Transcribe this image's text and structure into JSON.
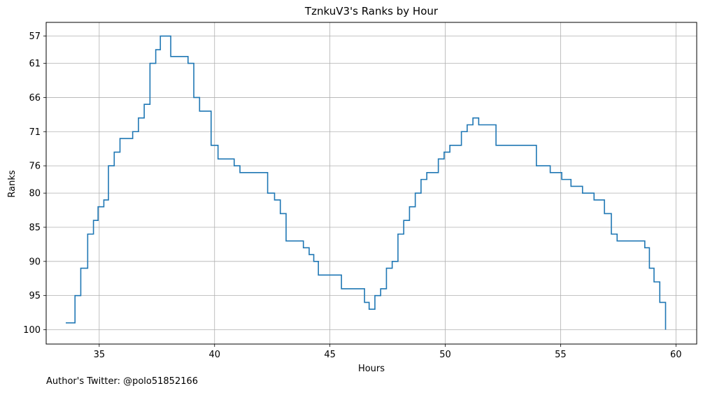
{
  "footer": "Author's Twitter: @polo51852166",
  "chart_data": {
    "type": "line",
    "step": "post",
    "title": "TznkuV3's Ranks by Hour",
    "xlabel": "Hours",
    "ylabel": "Ranks",
    "xlim": [
      32.7,
      60.9
    ],
    "ylim": [
      102.1,
      55.0
    ],
    "y_inverted": true,
    "grid": true,
    "color": "#1f77b4",
    "xticks": [
      35,
      40,
      45,
      50,
      55,
      60
    ],
    "yticks": [
      57,
      61,
      66,
      71,
      76,
      80,
      85,
      90,
      95,
      100
    ],
    "series": [
      {
        "x": [
          33.55,
          33.95,
          34.2,
          34.5,
          34.75,
          34.95,
          35.2,
          35.4,
          35.65,
          35.9,
          36.45,
          36.7,
          36.95,
          37.2,
          37.45,
          37.65,
          38.1,
          38.85,
          39.1,
          39.35,
          39.85,
          40.15,
          40.85,
          41.1,
          41.35,
          42.3,
          42.6,
          42.85,
          43.1,
          43.85,
          44.1,
          44.3,
          44.5,
          44.75,
          45.5,
          46.5,
          46.7,
          46.95,
          47.2,
          47.45,
          47.7,
          47.95,
          48.2,
          48.45,
          48.7,
          48.95,
          49.2,
          49.45,
          49.7,
          49.95,
          50.2,
          50.45,
          50.7,
          50.95,
          51.2,
          51.45,
          51.7,
          52.2,
          53.7,
          53.95,
          54.55,
          54.8,
          55.05,
          55.45,
          55.95,
          56.2,
          56.45,
          56.9,
          57.2,
          57.45,
          58.4,
          58.65,
          58.85,
          59.05,
          59.3,
          59.55
        ],
        "y": [
          99,
          95,
          91,
          86,
          84,
          82,
          81,
          76,
          74,
          72,
          71,
          69,
          67,
          61,
          59,
          57,
          60,
          61,
          66,
          68,
          73,
          75,
          76,
          77,
          77,
          80,
          81,
          83,
          87,
          88,
          89,
          90,
          92,
          92,
          94,
          96,
          97,
          95,
          94,
          91,
          90,
          86,
          84,
          82,
          80,
          78,
          77,
          77,
          75,
          74,
          73,
          73,
          71,
          70,
          69,
          70,
          70,
          73,
          73,
          76,
          77,
          77,
          78,
          79,
          80,
          80,
          81,
          83,
          86,
          87,
          87,
          88,
          91,
          93,
          96,
          100
        ]
      }
    ]
  }
}
